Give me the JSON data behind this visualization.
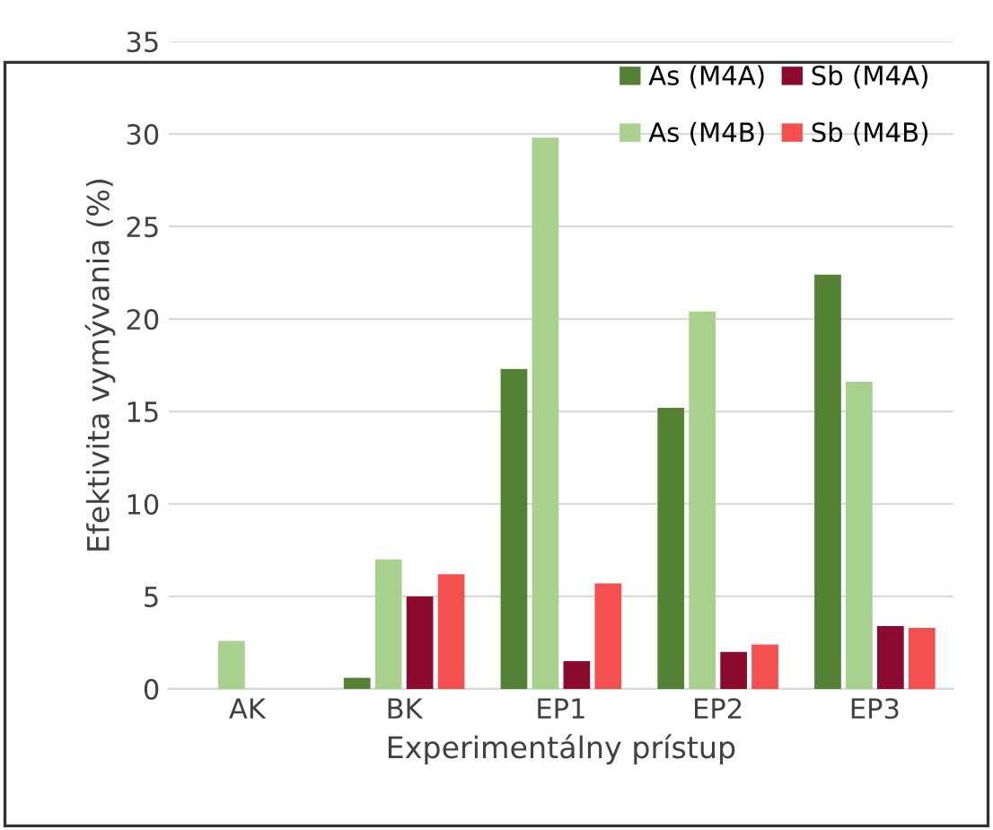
{
  "chart_data": {
    "type": "bar",
    "xlabel": "Experimentálny prístup",
    "ylabel": "Efektivita vymývania (%)",
    "categories": [
      "AK",
      "BK",
      "EP1",
      "EP2",
      "EP3"
    ],
    "series": [
      {
        "name": "As (M4A)",
        "color": "#548235",
        "values": [
          0,
          0.6,
          17.3,
          15.2,
          22.4
        ]
      },
      {
        "name": "As (M4B)",
        "color": "#a9d18e",
        "values": [
          2.6,
          7.0,
          29.8,
          20.4,
          16.6
        ]
      },
      {
        "name": "Sb (M4A)",
        "color": "#8b0a2e",
        "values": [
          0,
          5.0,
          1.5,
          2.0,
          3.4
        ]
      },
      {
        "name": "Sb (M4B)",
        "color": "#f4504f",
        "values": [
          0,
          6.2,
          5.7,
          2.4,
          3.3
        ]
      }
    ],
    "ylim": [
      0,
      35
    ],
    "yticks": [
      0,
      5,
      10,
      15,
      20,
      25,
      30,
      35
    ],
    "grid": "y",
    "legend": "top right"
  }
}
